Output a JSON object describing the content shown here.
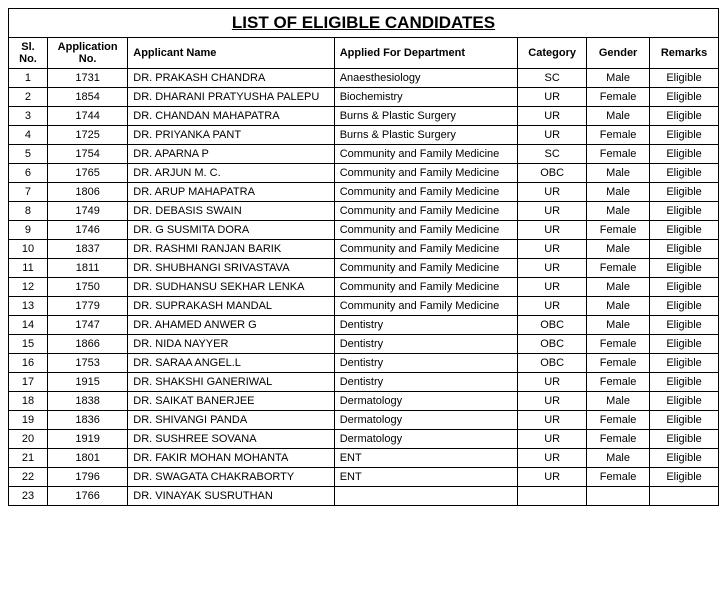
{
  "title": "LIST OF ELIGIBLE CANDIDATES",
  "columns": {
    "sl": "Sl. No.",
    "app": "Application No.",
    "name": "Applicant Name",
    "dept": "Applied For Department",
    "cat": "Category",
    "gen": "Gender",
    "rem": "Remarks"
  },
  "rows": [
    {
      "sl": "1",
      "app": "1731",
      "name": "DR. PRAKASH CHANDRA",
      "dept": "Anaesthesiology",
      "cat": "SC",
      "gen": "Male",
      "rem": "Eligible"
    },
    {
      "sl": "2",
      "app": "1854",
      "name": "DR. DHARANI PRATYUSHA PALEPU",
      "dept": "Biochemistry",
      "cat": "UR",
      "gen": "Female",
      "rem": "Eligible"
    },
    {
      "sl": "3",
      "app": "1744",
      "name": "DR. CHANDAN MAHAPATRA",
      "dept": "Burns & Plastic Surgery",
      "cat": "UR",
      "gen": "Male",
      "rem": "Eligible"
    },
    {
      "sl": "4",
      "app": "1725",
      "name": "DR. PRIYANKA PANT",
      "dept": "Burns & Plastic Surgery",
      "cat": "UR",
      "gen": "Female",
      "rem": "Eligible"
    },
    {
      "sl": "5",
      "app": "1754",
      "name": "DR. APARNA P",
      "dept": "Community and Family Medicine",
      "cat": "SC",
      "gen": "Female",
      "rem": "Eligible"
    },
    {
      "sl": "6",
      "app": "1765",
      "name": "DR. ARJUN M. C.",
      "dept": "Community and Family Medicine",
      "cat": "OBC",
      "gen": "Male",
      "rem": "Eligible"
    },
    {
      "sl": "7",
      "app": "1806",
      "name": "DR. ARUP MAHAPATRA",
      "dept": "Community and Family Medicine",
      "cat": "UR",
      "gen": "Male",
      "rem": "Eligible"
    },
    {
      "sl": "8",
      "app": "1749",
      "name": "DR. DEBASIS SWAIN",
      "dept": "Community and Family Medicine",
      "cat": "UR",
      "gen": "Male",
      "rem": "Eligible"
    },
    {
      "sl": "9",
      "app": "1746",
      "name": "DR. G SUSMITA DORA",
      "dept": "Community and Family Medicine",
      "cat": "UR",
      "gen": "Female",
      "rem": "Eligible"
    },
    {
      "sl": "10",
      "app": "1837",
      "name": "DR. RASHMI RANJAN BARIK",
      "dept": "Community and Family Medicine",
      "cat": "UR",
      "gen": "Male",
      "rem": "Eligible"
    },
    {
      "sl": "11",
      "app": "1811",
      "name": "DR. SHUBHANGI SRIVASTAVA",
      "dept": "Community and Family Medicine",
      "cat": "UR",
      "gen": "Female",
      "rem": "Eligible"
    },
    {
      "sl": "12",
      "app": "1750",
      "name": "DR. SUDHANSU SEKHAR LENKA",
      "dept": "Community and Family Medicine",
      "cat": "UR",
      "gen": "Male",
      "rem": "Eligible"
    },
    {
      "sl": "13",
      "app": "1779",
      "name": "DR. SUPRAKASH MANDAL",
      "dept": "Community and Family Medicine",
      "cat": "UR",
      "gen": "Male",
      "rem": "Eligible"
    },
    {
      "sl": "14",
      "app": "1747",
      "name": "DR. AHAMED ANWER G",
      "dept": "Dentistry",
      "cat": "OBC",
      "gen": "Male",
      "rem": "Eligible"
    },
    {
      "sl": "15",
      "app": "1866",
      "name": "DR. NIDA NAYYER",
      "dept": "Dentistry",
      "cat": "OBC",
      "gen": "Female",
      "rem": "Eligible"
    },
    {
      "sl": "16",
      "app": "1753",
      "name": "DR. SARAA ANGEL.L",
      "dept": "Dentistry",
      "cat": "OBC",
      "gen": "Female",
      "rem": "Eligible"
    },
    {
      "sl": "17",
      "app": "1915",
      "name": "DR. SHAKSHI GANERIWAL",
      "dept": "Dentistry",
      "cat": "UR",
      "gen": "Female",
      "rem": "Eligible"
    },
    {
      "sl": "18",
      "app": "1838",
      "name": "DR. SAIKAT BANERJEE",
      "dept": "Dermatology",
      "cat": "UR",
      "gen": "Male",
      "rem": "Eligible"
    },
    {
      "sl": "19",
      "app": "1836",
      "name": "DR. SHIVANGI PANDA",
      "dept": "Dermatology",
      "cat": "UR",
      "gen": "Female",
      "rem": "Eligible"
    },
    {
      "sl": "20",
      "app": "1919",
      "name": "DR. SUSHREE SOVANA",
      "dept": "Dermatology",
      "cat": "UR",
      "gen": "Female",
      "rem": "Eligible"
    },
    {
      "sl": "21",
      "app": "1801",
      "name": "DR. FAKIR MOHAN MOHANTA",
      "dept": "ENT",
      "cat": "UR",
      "gen": "Male",
      "rem": "Eligible"
    },
    {
      "sl": "22",
      "app": "1796",
      "name": "DR. SWAGATA CHAKRABORTY",
      "dept": "ENT",
      "cat": "UR",
      "gen": "Female",
      "rem": "Eligible"
    },
    {
      "sl": "23",
      "app": "1766",
      "name": "DR. VINAYAK SUSRUTHAN",
      "dept": "",
      "cat": "",
      "gen": "",
      "rem": ""
    }
  ],
  "style": {
    "background_color": "#ffffff",
    "border_color": "#000000",
    "title_fontsize": 17,
    "header_fontsize": 11,
    "cell_fontsize": 11,
    "font_family": "Arial"
  }
}
